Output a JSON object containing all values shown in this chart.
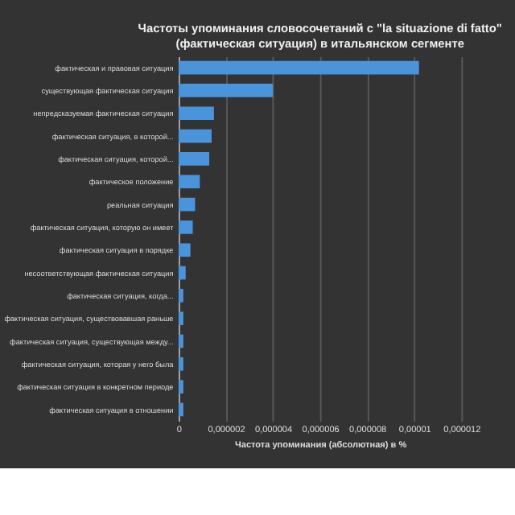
{
  "chart_data": {
    "type": "bar",
    "orientation": "horizontal",
    "title": "Частоты упоминания словосочетаний с \"la situazione di fatto\"\n(фактическая ситуация) в итальянском сегменте",
    "xlabel": "Частота упоминания (абсолютная) в %",
    "categories": [
      "фактическая и правовая ситуация",
      "существующая фактическая ситуация",
      "непредсказуемая фактическая ситуация",
      "фактическая ситуация, в которой...",
      "фактическая ситуация, которой...",
      "фактическое положение",
      "реальная ситуация",
      "фактическая ситуация, которую он имеет",
      "фактическая ситуация в порядке",
      "несоответствующая фактическая ситуация",
      "фактическая ситуация, когда...",
      "фактическая ситуация, существовавшая раньше",
      "фактическая ситуация, существующая между...",
      "фактическая ситуация, которая у него была",
      "фактическая ситуация в конкретном периоде",
      "фактическая ситуация в отношении"
    ],
    "values": [
      1.02e-05,
      4e-06,
      1.5e-06,
      1.4e-06,
      1.3e-06,
      9e-07,
      7e-07,
      6e-07,
      5e-07,
      3e-07,
      2e-07,
      2e-07,
      2e-07,
      2e-07,
      2e-07,
      2e-07
    ],
    "color": "#4a94dc",
    "xlim": [
      0,
      1.2e-05
    ],
    "xticks": [
      0,
      {
        "value": 2e-06,
        "label": "0,000002"
      },
      {
        "value": 4e-06,
        "label": "0,000004"
      },
      {
        "value": 6e-06,
        "label": "0,000006"
      },
      {
        "value": 8e-06,
        "label": "0,000008"
      },
      {
        "value": 1e-05,
        "label": "0,00001"
      },
      {
        "value": 1.2e-05,
        "label": "0,000012"
      }
    ],
    "grid": "x"
  }
}
